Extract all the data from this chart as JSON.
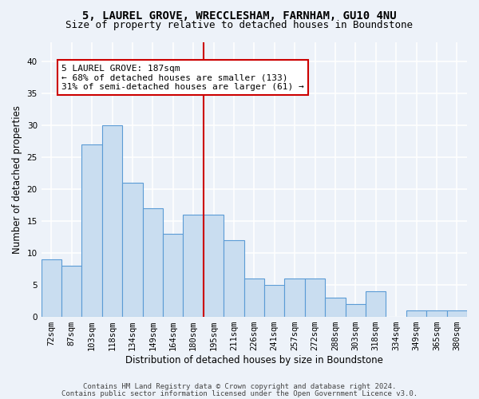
{
  "title_line1": "5, LAUREL GROVE, WRECCLESHAM, FARNHAM, GU10 4NU",
  "title_line2": "Size of property relative to detached houses in Boundstone",
  "xlabel": "Distribution of detached houses by size in Boundstone",
  "ylabel": "Number of detached properties",
  "categories": [
    "72sqm",
    "87sqm",
    "103sqm",
    "118sqm",
    "134sqm",
    "149sqm",
    "164sqm",
    "180sqm",
    "195sqm",
    "211sqm",
    "226sqm",
    "241sqm",
    "257sqm",
    "272sqm",
    "288sqm",
    "303sqm",
    "318sqm",
    "334sqm",
    "349sqm",
    "365sqm",
    "380sqm"
  ],
  "values": [
    9,
    8,
    27,
    30,
    21,
    17,
    13,
    16,
    16,
    12,
    6,
    5,
    6,
    6,
    3,
    2,
    4,
    0,
    1,
    1,
    1
  ],
  "bar_color": "#c9ddf0",
  "bar_edge_color": "#5b9bd5",
  "bar_width": 1.0,
  "vline_x": 7.5,
  "vline_color": "#cc0000",
  "annotation_line1": "5 LAUREL GROVE: 187sqm",
  "annotation_line2": "← 68% of detached houses are smaller (133)",
  "annotation_line3": "31% of semi-detached houses are larger (61) →",
  "annotation_box_color": "#ffffff",
  "annotation_box_edge": "#cc0000",
  "ylim": [
    0,
    43
  ],
  "yticks": [
    0,
    5,
    10,
    15,
    20,
    25,
    30,
    35,
    40
  ],
  "fig_bg_color": "#edf2f9",
  "ax_bg_color": "#edf2f9",
  "grid_color": "#ffffff",
  "footer_line1": "Contains HM Land Registry data © Crown copyright and database right 2024.",
  "footer_line2": "Contains public sector information licensed under the Open Government Licence v3.0.",
  "title_fontsize": 10,
  "subtitle_fontsize": 9,
  "axis_label_fontsize": 8.5,
  "tick_fontsize": 7.5,
  "annotation_fontsize": 8,
  "footer_fontsize": 6.5
}
